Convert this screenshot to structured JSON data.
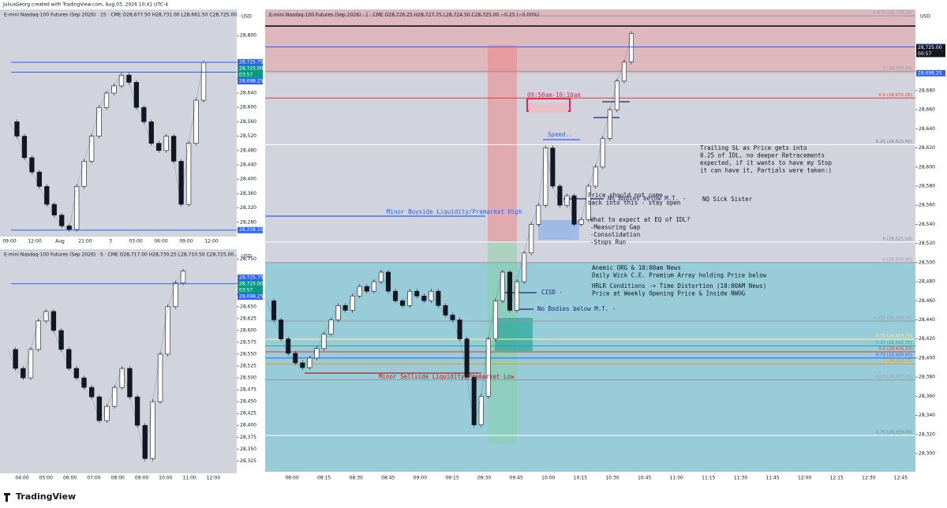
{
  "header": "JuliusGeorg created with TradingView.com, Aug 03, 2026 10:41 UTC-4",
  "footer": "TradingView",
  "panels": [
    {
      "title": "E-mini Nasdaq-100 Futures (Sep 2026) · 15 · CME  O28,677.50 H28,731.00 L28,661.50 C28,725.00...",
      "currency": "USD",
      "ylim": [
        28240,
        28873
      ],
      "yticks": [
        {
          "value": 28280,
          "label": "28,280"
        },
        {
          "value": 28320,
          "label": "28,320"
        },
        {
          "value": 28360,
          "label": "28,360"
        },
        {
          "value": 28400,
          "label": "28,400"
        },
        {
          "value": 28440,
          "label": "28,440"
        },
        {
          "value": 28480,
          "label": "28,480"
        },
        {
          "value": 28520,
          "label": "28,520"
        },
        {
          "value": 28560,
          "label": "28,560"
        },
        {
          "value": 28600,
          "label": "28,600"
        },
        {
          "value": 28640,
          "label": "28,640"
        },
        {
          "value": 28680,
          "label": "28,680"
        },
        {
          "value": 28800,
          "label": "28,800"
        }
      ],
      "xticks": [
        "09:00",
        "12:00",
        "Aug",
        "21:00",
        "3",
        "03:00",
        "06:00",
        "09:00",
        "12:00"
      ],
      "path": [
        28560,
        28520,
        28460,
        28420,
        28380,
        28330,
        28300,
        28270,
        28260,
        28380,
        28450,
        28520,
        28600,
        28640,
        28660,
        28690,
        28670,
        28600,
        28560,
        28500,
        28480,
        28520,
        28450,
        28330,
        28500,
        28620,
        28725
      ],
      "price_labels": [
        {
          "text": "28,725.75",
          "price": 28725.75,
          "color": "#2962ff",
          "line": true
        },
        {
          "text": "28,725.00",
          "price": 28725,
          "color": "#089981",
          "line": false
        },
        {
          "text": "03:57",
          "color": "#089981"
        },
        {
          "text": "28,698.25",
          "price": 28698.25,
          "color": "#2962ff",
          "line": true
        },
        {
          "text": "28,258.25",
          "price": 28258.25,
          "color": "#2962ff",
          "line": true
        }
      ]
    },
    {
      "title": "E-mini Nasdaq-100 Futures (Sep 2026) · 5 · CME  O28,717.00 H28,730.25 L28,710.50 C28,725.00...",
      "currency": "USD",
      "ylim": [
        28299,
        28771
      ],
      "yticks": [
        {
          "value": 28325,
          "label": "28,325"
        },
        {
          "value": 28350,
          "label": "28,350"
        },
        {
          "value": 28375,
          "label": "28,375"
        },
        {
          "value": 28400,
          "label": "28,400"
        },
        {
          "value": 28425,
          "label": "28,425"
        },
        {
          "value": 28450,
          "label": "28,450"
        },
        {
          "value": 28475,
          "label": "28,475"
        },
        {
          "value": 28500,
          "label": "28,500"
        },
        {
          "value": 28525,
          "label": "28,525"
        },
        {
          "value": 28550,
          "label": "28,550"
        },
        {
          "value": 28575,
          "label": "28,575"
        },
        {
          "value": 28600,
          "label": "28,600"
        },
        {
          "value": 28625,
          "label": "28,625"
        },
        {
          "value": 28650,
          "label": "28,650"
        },
        {
          "value": 28675,
          "label": "28,675"
        },
        {
          "value": 28700,
          "label": "28,700"
        },
        {
          "value": 28750,
          "label": "28,750"
        }
      ],
      "xticks": [
        "04:00",
        "05:00",
        "06:00",
        "07:00",
        "08:00",
        "09:00",
        "10:00",
        "11:00",
        "12:00"
      ],
      "path": [
        28560,
        28520,
        28500,
        28560,
        28620,
        28640,
        28600,
        28560,
        28520,
        28500,
        28480,
        28460,
        28410,
        28440,
        28480,
        28520,
        28460,
        28400,
        28330,
        28450,
        28550,
        28650,
        28700,
        28725
      ],
      "price_labels": [
        {
          "text": "28,725.75",
          "price": 28725.75,
          "color": "#2962ff",
          "line": false
        },
        {
          "text": "28,725.00",
          "price": 28725,
          "color": "#089981",
          "line": false
        },
        {
          "text": "03:57",
          "color": "#089981"
        },
        {
          "text": "28,698.25",
          "price": 28698.25,
          "color": "#2962ff",
          "line": true
        }
      ]
    },
    {
      "title": "E-mini Nasdaq-100 Futures (Sep 2026) · 1 · CME  O28,726.25 H28,727.75 L28,724.50 C28,725.00 −0.25 (−0.00%)",
      "currency": "USD",
      "ylim": [
        28281,
        28765
      ],
      "yticks": [
        {
          "value": 28300,
          "label": "28,300"
        },
        {
          "value": 28320,
          "label": "28,320"
        },
        {
          "value": 28340,
          "label": "28,340"
        },
        {
          "value": 28360,
          "label": "28,360"
        },
        {
          "value": 28380,
          "label": "28,380"
        },
        {
          "value": 28400,
          "label": "28,400"
        },
        {
          "value": 28420,
          "label": "28,420"
        },
        {
          "value": 28440,
          "label": "28,440"
        },
        {
          "value": 28460,
          "label": "28,460"
        },
        {
          "value": 28480,
          "label": "28,480"
        },
        {
          "value": 28500,
          "label": "28,500"
        },
        {
          "value": 28520,
          "label": "28,520"
        },
        {
          "value": 28540,
          "label": "28,540"
        },
        {
          "value": 28560,
          "label": "28,560"
        },
        {
          "value": 28580,
          "label": "28,580"
        },
        {
          "value": 28600,
          "label": "28,600"
        },
        {
          "value": 28620,
          "label": "28,620"
        },
        {
          "value": 28640,
          "label": "28,640"
        },
        {
          "value": 28660,
          "label": "28,660"
        },
        {
          "value": 28680,
          "label": "28,680"
        }
      ],
      "xticks": [
        "08:00",
        "08:15",
        "08:30",
        "08:45",
        "09:00",
        "09:15",
        "09:30",
        "09:45",
        "10:00",
        "10:15",
        "10:30",
        "10:45",
        "11:00",
        "11:15",
        "11:30",
        "11:45",
        "12:00",
        "12:15",
        "12:30",
        "12:45"
      ],
      "path": [
        28460,
        28440,
        28420,
        28405,
        28395,
        28390,
        28400,
        28410,
        28425,
        28440,
        28455,
        28450,
        28465,
        28475,
        28470,
        28480,
        28490,
        28470,
        28460,
        28455,
        28470,
        28465,
        28460,
        28470,
        28455,
        28445,
        28440,
        28420,
        28380,
        28330,
        28360,
        28420,
        28460,
        28490,
        28450,
        28480,
        28510,
        28540,
        28560,
        28620,
        28580,
        28560,
        28570,
        28540,
        28545,
        28580,
        28600,
        28630,
        28660,
        28690,
        28710,
        28740
      ],
      "price_labels": [
        {
          "text": "28,725.75",
          "price": 28725.75,
          "color": "#2962ff",
          "line": true
        },
        {
          "text": "28,725.00",
          "price": 28725,
          "color": "#131722",
          "line": false
        },
        {
          "text": "00:57",
          "color": "#131722"
        },
        {
          "text": "28,698.25",
          "price": 28698.25,
          "color": "#2962ff",
          "line": false
        }
      ],
      "levels": [
        {
          "label": "0.875 (28,758.25)",
          "price": 28758.25,
          "color": "#9598a1"
        },
        {
          "label": "1 (28,700.25)",
          "price": 28700.25,
          "color": "#9598a1"
        },
        {
          "label": "0.5 (28,672.25)",
          "price": 28672.25,
          "color": "#e53935"
        },
        {
          "label": "0.25 (28,623.50)",
          "price": 28623.5,
          "color": "#ffffff"
        },
        {
          "label": "0 (28,521.50)",
          "price": 28521.5,
          "color": "#ffffff"
        },
        {
          "label": "0 (28,500.00)",
          "price": 28500,
          "color": "#9598a1"
        },
        {
          "label": "0.125 (28,438.75)",
          "price": 28438.75,
          "color": "#9598a1"
        },
        {
          "label": "0.75 (28,419.75)",
          "price": 28419.75,
          "color": "#fff59d"
        },
        {
          "label": "0.25 (28,412.75)",
          "price": 28412.75,
          "color": "#26a69a"
        },
        {
          "label": "0.5 (28,406.50)",
          "price": 28406.5,
          "color": "#e53935"
        },
        {
          "label": "0.75 (28,400.00)",
          "price": 28400,
          "color": "#2962ff"
        },
        {
          "label": "1 (28,393.75)",
          "price": 28393.75,
          "color": "#ff9800"
        },
        {
          "label": "0.25 (28,377.25)",
          "price": 28377.25,
          "color": "#9598a1"
        },
        {
          "label": "0.75 (28,319.00)",
          "price": 28319,
          "color": "#ffffff"
        }
      ]
    }
  ],
  "annotations": [
    {
      "lines": [
        "09:50am-10:10am"
      ],
      "color": "#e91e63"
    },
    {
      "lines": [
        "Speed.."
      ],
      "color": "#2962ff"
    },
    {
      "lines": [
        "Trailing SL as Price gets into",
        "0.25 of IDL, no deeper Retracements",
        "expected, if it wants to have my Stop",
        "it can have it, Partials were taken:)"
      ],
      "color": "#131722"
    },
    {
      "lines": [
        "Price should not come",
        "back into this - stay open"
      ],
      "color": "#131722"
    },
    {
      "lines": [
        "No Bodies below M.T. -"
      ],
      "color": "#1a237e"
    },
    {
      "lines": [
        "NQ Sick Sister"
      ],
      "color": "#131722"
    },
    {
      "lines": [
        "Minor Buyside Liquidity/Premarket High"
      ],
      "color": "#2962ff"
    },
    {
      "lines": [
        "What to expect at EQ of IDL?",
        "-Measuring Gap",
        "-Consolidation",
        "-Stops Run"
      ],
      "color": "#131722"
    },
    {
      "lines": [
        "Anemic ORG & 10:00am News",
        "Daily Wick C.E. Premium Array holding Price below"
      ],
      "color": "#131722"
    },
    {
      "lines": [
        "HRLR Conditions -> Time Distortion (10:00AM News)",
        "Price at Weekly Opening Price & Inside NWOG"
      ],
      "color": "#131722"
    },
    {
      "lines": [
        "CISD -"
      ],
      "color": "#1a237e"
    },
    {
      "lines": [
        "No Bodies below M.T. -"
      ],
      "color": "#1a237e"
    },
    {
      "lines": [
        "Minor Sellside Liquidity/Premarket Low"
      ],
      "color": "#b71c1c"
    }
  ]
}
